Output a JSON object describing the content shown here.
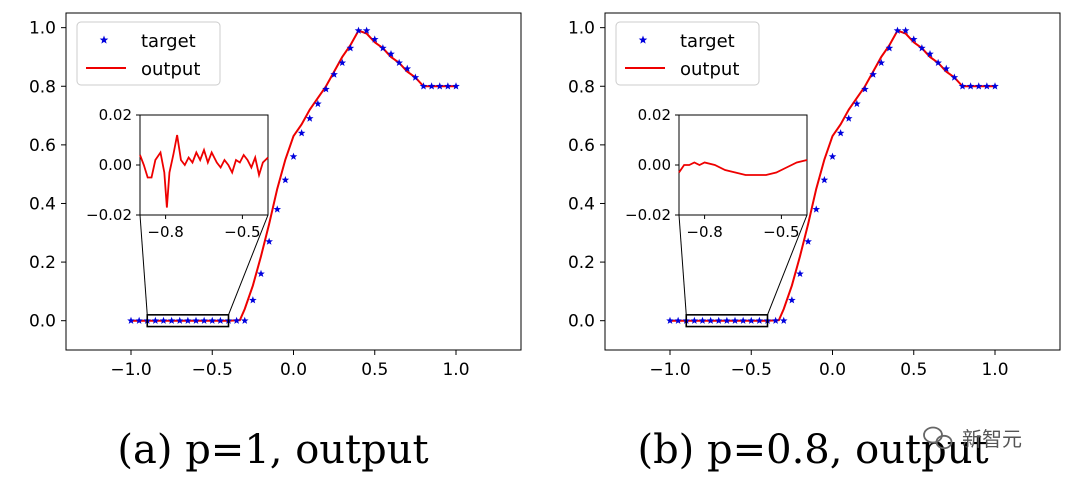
{
  "chart_data": [
    {
      "type": "line",
      "panel": "a",
      "caption": "(a) p=1, output",
      "xlim": [
        -1.4,
        1.4
      ],
      "ylim": [
        -0.1,
        1.05
      ],
      "xticks": [
        -1.0,
        -0.5,
        0.0,
        0.5,
        1.0
      ],
      "xtick_labels": [
        "−1.0",
        "−0.5",
        "0.0",
        "0.5",
        "1.0"
      ],
      "yticks": [
        0.0,
        0.2,
        0.4,
        0.6,
        0.8,
        1.0
      ],
      "ytick_labels": [
        "0.0",
        "0.2",
        "0.4",
        "0.6",
        "0.8",
        "1.0"
      ],
      "legend": {
        "location": "top-left",
        "entries": [
          {
            "label": "target",
            "marker": "star",
            "color": "#0000dd"
          },
          {
            "label": "output",
            "line": "solid",
            "color": "#ee0000"
          }
        ]
      },
      "series": [
        {
          "name": "target",
          "style": "markers",
          "color": "#0000dd",
          "x": [
            -1.0,
            -0.95,
            -0.9,
            -0.85,
            -0.8,
            -0.75,
            -0.7,
            -0.65,
            -0.6,
            -0.55,
            -0.5,
            -0.45,
            -0.4,
            -0.35,
            -0.3,
            -0.25,
            -0.2,
            -0.15,
            -0.1,
            -0.05,
            0.0,
            0.05,
            0.1,
            0.15,
            0.2,
            0.25,
            0.3,
            0.35,
            0.4,
            0.45,
            0.5,
            0.55,
            0.6,
            0.65,
            0.7,
            0.75,
            0.8,
            0.85,
            0.9,
            0.95,
            1.0
          ],
          "y": [
            0,
            0,
            0,
            0,
            0,
            0,
            0,
            0,
            0,
            0,
            0,
            0,
            0,
            0,
            0,
            0.07,
            0.16,
            0.27,
            0.38,
            0.48,
            0.56,
            0.64,
            0.69,
            0.74,
            0.79,
            0.84,
            0.88,
            0.93,
            0.99,
            0.99,
            0.96,
            0.93,
            0.91,
            0.88,
            0.86,
            0.83,
            0.8,
            0.8,
            0.8,
            0.8,
            0.8
          ]
        },
        {
          "name": "output",
          "style": "line",
          "color": "#ee0000",
          "x": [
            -1.0,
            -0.9,
            -0.8,
            -0.7,
            -0.6,
            -0.5,
            -0.4,
            -0.33,
            -0.3,
            -0.25,
            -0.2,
            -0.15,
            -0.1,
            -0.05,
            0.0,
            0.05,
            0.1,
            0.15,
            0.2,
            0.25,
            0.3,
            0.35,
            0.4,
            0.45,
            0.5,
            0.55,
            0.6,
            0.65,
            0.7,
            0.75,
            0.8,
            0.85,
            0.9,
            0.95,
            1.0
          ],
          "y": [
            0,
            0,
            0,
            0,
            0,
            0,
            0,
            0.002,
            0.04,
            0.12,
            0.22,
            0.33,
            0.45,
            0.55,
            0.63,
            0.67,
            0.72,
            0.76,
            0.8,
            0.85,
            0.9,
            0.94,
            0.99,
            0.98,
            0.95,
            0.93,
            0.9,
            0.88,
            0.85,
            0.83,
            0.8,
            0.8,
            0.8,
            0.8,
            0.8
          ]
        }
      ],
      "zoom_box": {
        "xlim": [
          -0.9,
          -0.4
        ],
        "ylim": [
          -0.02,
          0.02
        ]
      },
      "inset": {
        "xlim": [
          -0.9,
          -0.4
        ],
        "ylim": [
          -0.02,
          0.02
        ],
        "xticks": [
          -0.8,
          -0.5
        ],
        "xtick_labels": [
          "−0.8",
          "−0.5"
        ],
        "yticks": [
          0.02,
          0.0,
          -0.02
        ],
        "ytick_labels": [
          "0.02",
          "0.00",
          "−0.02"
        ],
        "series": [
          {
            "name": "output (zoomed)",
            "color": "#ee0000",
            "x": [
              -0.9,
              -0.885,
              -0.87,
              -0.855,
              -0.84,
              -0.82,
              -0.805,
              -0.795,
              -0.785,
              -0.77,
              -0.755,
              -0.74,
              -0.725,
              -0.71,
              -0.695,
              -0.68,
              -0.665,
              -0.65,
              -0.635,
              -0.62,
              -0.6,
              -0.585,
              -0.57,
              -0.555,
              -0.54,
              -0.525,
              -0.51,
              -0.495,
              -0.48,
              -0.465,
              -0.45,
              -0.435,
              -0.42,
              -0.4
            ],
            "y": [
              0.004,
              0.0,
              -0.005,
              -0.005,
              0.002,
              0.005,
              -0.003,
              -0.017,
              -0.003,
              0.004,
              0.012,
              0.002,
              0.0,
              0.003,
              0.001,
              0.005,
              0.002,
              0.006,
              0.001,
              0.005,
              0.001,
              -0.001,
              0.002,
              0.0,
              -0.003,
              0.002,
              0.001,
              0.004,
              0.002,
              -0.001,
              0.003,
              -0.004,
              0.001,
              0.003
            ]
          }
        ]
      }
    },
    {
      "type": "line",
      "panel": "b",
      "caption": "(b) p=0.8, output",
      "xlim": [
        -1.4,
        1.4
      ],
      "ylim": [
        -0.1,
        1.05
      ],
      "xticks": [
        -1.0,
        -0.5,
        0.0,
        0.5,
        1.0
      ],
      "xtick_labels": [
        "−1.0",
        "−0.5",
        "0.0",
        "0.5",
        "1.0"
      ],
      "yticks": [
        0.0,
        0.2,
        0.4,
        0.6,
        0.8,
        1.0
      ],
      "ytick_labels": [
        "0.0",
        "0.2",
        "0.4",
        "0.6",
        "0.8",
        "1.0"
      ],
      "legend": {
        "location": "top-left",
        "entries": [
          {
            "label": "target",
            "marker": "star",
            "color": "#0000dd"
          },
          {
            "label": "output",
            "line": "solid",
            "color": "#ee0000"
          }
        ]
      },
      "series": [
        {
          "name": "target",
          "style": "markers",
          "color": "#0000dd",
          "x": [
            -1.0,
            -0.95,
            -0.9,
            -0.85,
            -0.8,
            -0.75,
            -0.7,
            -0.65,
            -0.6,
            -0.55,
            -0.5,
            -0.45,
            -0.4,
            -0.35,
            -0.3,
            -0.25,
            -0.2,
            -0.15,
            -0.1,
            -0.05,
            0.0,
            0.05,
            0.1,
            0.15,
            0.2,
            0.25,
            0.3,
            0.35,
            0.4,
            0.45,
            0.5,
            0.55,
            0.6,
            0.65,
            0.7,
            0.75,
            0.8,
            0.85,
            0.9,
            0.95,
            1.0
          ],
          "y": [
            0,
            0,
            0,
            0,
            0,
            0,
            0,
            0,
            0,
            0,
            0,
            0,
            0,
            0,
            0,
            0.07,
            0.16,
            0.27,
            0.38,
            0.48,
            0.56,
            0.64,
            0.69,
            0.74,
            0.79,
            0.84,
            0.88,
            0.93,
            0.99,
            0.99,
            0.96,
            0.93,
            0.91,
            0.88,
            0.86,
            0.83,
            0.8,
            0.8,
            0.8,
            0.8,
            0.8
          ]
        },
        {
          "name": "output",
          "style": "line",
          "color": "#ee0000",
          "x": [
            -1.0,
            -0.9,
            -0.8,
            -0.7,
            -0.6,
            -0.5,
            -0.4,
            -0.33,
            -0.3,
            -0.25,
            -0.2,
            -0.15,
            -0.1,
            -0.05,
            0.0,
            0.05,
            0.1,
            0.15,
            0.2,
            0.25,
            0.3,
            0.35,
            0.4,
            0.45,
            0.5,
            0.55,
            0.6,
            0.65,
            0.7,
            0.75,
            0.8,
            0.85,
            0.9,
            0.95,
            1.0
          ],
          "y": [
            0,
            0,
            0,
            0,
            0,
            0,
            0,
            0.002,
            0.04,
            0.12,
            0.22,
            0.33,
            0.45,
            0.55,
            0.63,
            0.67,
            0.72,
            0.76,
            0.8,
            0.85,
            0.9,
            0.94,
            0.99,
            0.98,
            0.95,
            0.93,
            0.9,
            0.88,
            0.85,
            0.83,
            0.8,
            0.8,
            0.8,
            0.8,
            0.8
          ]
        }
      ],
      "zoom_box": {
        "xlim": [
          -0.9,
          -0.4
        ],
        "ylim": [
          -0.02,
          0.02
        ]
      },
      "inset": {
        "xlim": [
          -0.9,
          -0.4
        ],
        "ylim": [
          -0.02,
          0.02
        ],
        "xticks": [
          -0.8,
          -0.5
        ],
        "xtick_labels": [
          "−0.8",
          "−0.5"
        ],
        "yticks": [
          0.02,
          0.0,
          -0.02
        ],
        "ytick_labels": [
          "0.02",
          "0.00",
          "−0.02"
        ],
        "series": [
          {
            "name": "output (zoomed)",
            "color": "#ee0000",
            "x": [
              -0.9,
              -0.88,
              -0.86,
              -0.84,
              -0.82,
              -0.8,
              -0.76,
              -0.72,
              -0.68,
              -0.64,
              -0.6,
              -0.56,
              -0.52,
              -0.48,
              -0.44,
              -0.4
            ],
            "y": [
              -0.003,
              0.0,
              0.0,
              0.001,
              0.0,
              0.001,
              0.0,
              -0.002,
              -0.003,
              -0.004,
              -0.004,
              -0.004,
              -0.003,
              -0.001,
              0.001,
              0.002
            ]
          }
        ]
      }
    }
  ],
  "watermark": {
    "text": "新智元",
    "icon": "wechat-icon"
  }
}
